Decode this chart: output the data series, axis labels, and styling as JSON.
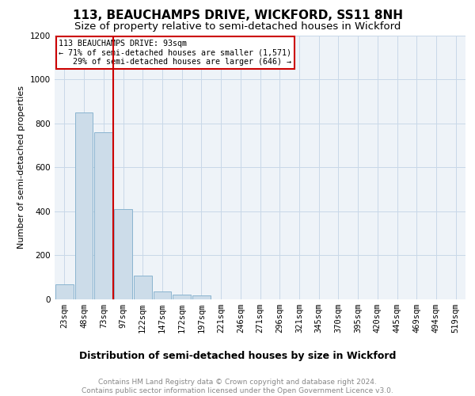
{
  "title": "113, BEAUCHAMPS DRIVE, WICKFORD, SS11 8NH",
  "subtitle": "Size of property relative to semi-detached houses in Wickford",
  "xlabel": "Distribution of semi-detached houses by size in Wickford",
  "ylabel": "Number of semi-detached properties",
  "footer": "Contains HM Land Registry data © Crown copyright and database right 2024.\nContains public sector information licensed under the Open Government Licence v3.0.",
  "bin_labels": [
    "23sqm",
    "48sqm",
    "73sqm",
    "97sqm",
    "122sqm",
    "147sqm",
    "172sqm",
    "197sqm",
    "221sqm",
    "246sqm",
    "271sqm",
    "296sqm",
    "321sqm",
    "345sqm",
    "370sqm",
    "395sqm",
    "420sqm",
    "445sqm",
    "469sqm",
    "494sqm",
    "519sqm"
  ],
  "bar_values": [
    65,
    850,
    760,
    410,
    105,
    35,
    20,
    15,
    0,
    0,
    0,
    0,
    0,
    0,
    0,
    0,
    0,
    0,
    0,
    0,
    0
  ],
  "bar_color": "#ccdce9",
  "bar_edge_color": "#8ab4d0",
  "vline_color": "#cc0000",
  "annotation_text": "113 BEAUCHAMPS DRIVE: 93sqm\n← 71% of semi-detached houses are smaller (1,571)\n   29% of semi-detached houses are larger (646) →",
  "annotation_box_color": "#cc0000",
  "ylim": [
    0,
    1200
  ],
  "yticks": [
    0,
    200,
    400,
    600,
    800,
    1000,
    1200
  ],
  "title_fontsize": 11,
  "subtitle_fontsize": 9.5,
  "xlabel_fontsize": 9,
  "ylabel_fontsize": 8,
  "tick_fontsize": 7.5,
  "footer_fontsize": 6.5,
  "background_color": "#ffffff",
  "plot_bg_color": "#eef3f8",
  "grid_color": "#c8d8e8"
}
